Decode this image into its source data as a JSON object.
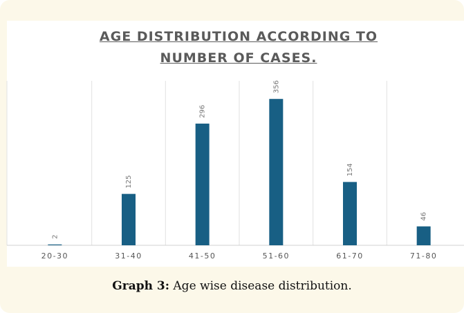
{
  "chart_data": {
    "type": "bar",
    "title": "AGE DISTRIBUTION ACCORDING TO NUMBER OF CASES.",
    "categories": [
      "20-30",
      "31-40",
      "41-50",
      "51-60",
      "61-70",
      "71-80"
    ],
    "values": [
      2,
      125,
      296,
      356,
      154,
      46
    ],
    "color": "#185f84",
    "ylim": [
      0,
      400
    ],
    "grid": true
  },
  "caption": {
    "label": "Graph 3:",
    "text": "Age wise disease distribution."
  }
}
